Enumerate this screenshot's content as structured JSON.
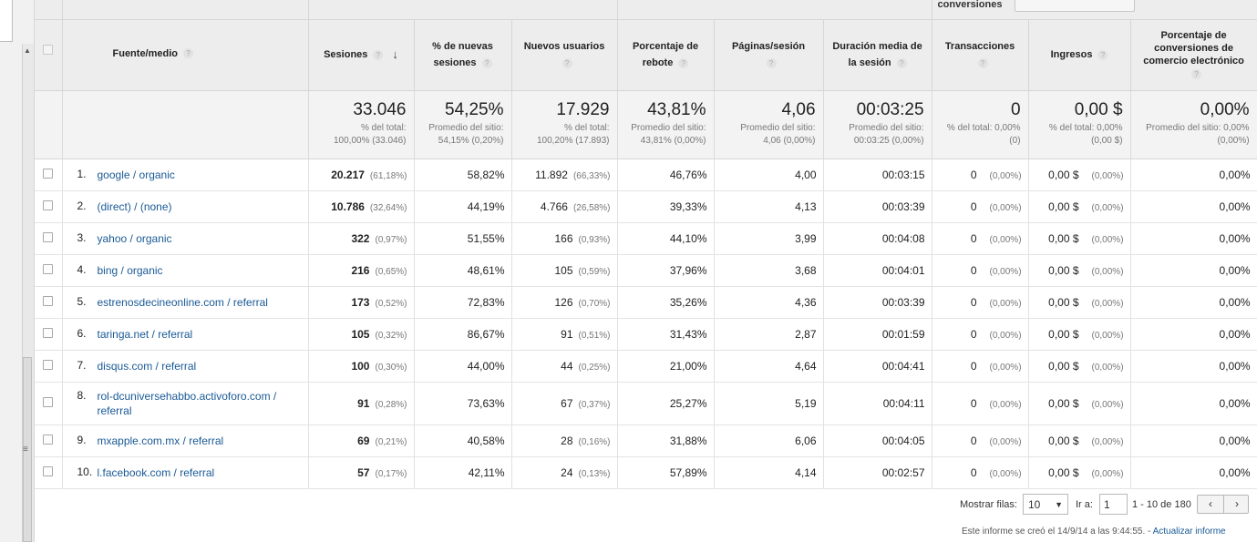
{
  "header": {
    "group_right": "conversiones",
    "fuente_label": "Fuente/medio",
    "columns": [
      {
        "label": "Sesiones"
      },
      {
        "label": "% de nuevas sesiones"
      },
      {
        "label": "Nuevos usuarios"
      },
      {
        "label": "Porcentaje de rebote"
      },
      {
        "label": "Páginas/sesión"
      },
      {
        "label": "Duración media de la sesión"
      },
      {
        "label": "Transacciones"
      },
      {
        "label": "Ingresos"
      },
      {
        "label": "Porcentaje de conversiones de comercio electrónico"
      }
    ]
  },
  "totals": [
    {
      "value": "33.046",
      "sub1": "% del total:",
      "sub2": "100,00% (33.046)"
    },
    {
      "value": "54,25%",
      "sub1": "Promedio del sitio:",
      "sub2": "54,15% (0,20%)"
    },
    {
      "value": "17.929",
      "sub1": "% del total:",
      "sub2": "100,20% (17.893)"
    },
    {
      "value": "43,81%",
      "sub1": "Promedio del sitio:",
      "sub2": "43,81% (0,00%)"
    },
    {
      "value": "4,06",
      "sub1": "Promedio del sitio:",
      "sub2": "4,06 (0,00%)"
    },
    {
      "value": "00:03:25",
      "sub1": "Promedio del sitio:",
      "sub2": "00:03:25 (0,00%)"
    },
    {
      "value": "0",
      "sub1": "% del total: 0,00%",
      "sub2": "(0)"
    },
    {
      "value": "0,00 $",
      "sub1": "% del total: 0,00%",
      "sub2": "(0,00 $)"
    },
    {
      "value": "0,00%",
      "sub1": "Promedio del sitio: 0,00%",
      "sub2": "(0,00%)"
    }
  ],
  "rows": [
    {
      "idx": "1.",
      "source": "google / organic",
      "sessions": "20.217",
      "sessions_pct": "(61,18%)",
      "new_sessions": "58,82%",
      "new_users": "11.892",
      "new_users_pct": "(66,33%)",
      "bounce": "46,76%",
      "pages": "4,00",
      "duration": "00:03:15",
      "transactions": "0",
      "transactions_pct": "(0,00%)",
      "revenue": "0,00 $",
      "revenue_pct": "(0,00%)",
      "conversion": "0,00%"
    },
    {
      "idx": "2.",
      "source": "(direct) / (none)",
      "sessions": "10.786",
      "sessions_pct": "(32,64%)",
      "new_sessions": "44,19%",
      "new_users": "4.766",
      "new_users_pct": "(26,58%)",
      "bounce": "39,33%",
      "pages": "4,13",
      "duration": "00:03:39",
      "transactions": "0",
      "transactions_pct": "(0,00%)",
      "revenue": "0,00 $",
      "revenue_pct": "(0,00%)",
      "conversion": "0,00%"
    },
    {
      "idx": "3.",
      "source": "yahoo / organic",
      "sessions": "322",
      "sessions_pct": "(0,97%)",
      "new_sessions": "51,55%",
      "new_users": "166",
      "new_users_pct": "(0,93%)",
      "bounce": "44,10%",
      "pages": "3,99",
      "duration": "00:04:08",
      "transactions": "0",
      "transactions_pct": "(0,00%)",
      "revenue": "0,00 $",
      "revenue_pct": "(0,00%)",
      "conversion": "0,00%"
    },
    {
      "idx": "4.",
      "source": "bing / organic",
      "sessions": "216",
      "sessions_pct": "(0,65%)",
      "new_sessions": "48,61%",
      "new_users": "105",
      "new_users_pct": "(0,59%)",
      "bounce": "37,96%",
      "pages": "3,68",
      "duration": "00:04:01",
      "transactions": "0",
      "transactions_pct": "(0,00%)",
      "revenue": "0,00 $",
      "revenue_pct": "(0,00%)",
      "conversion": "0,00%"
    },
    {
      "idx": "5.",
      "source": "estrenosdecineonline.com / referral",
      "sessions": "173",
      "sessions_pct": "(0,52%)",
      "new_sessions": "72,83%",
      "new_users": "126",
      "new_users_pct": "(0,70%)",
      "bounce": "35,26%",
      "pages": "4,36",
      "duration": "00:03:39",
      "transactions": "0",
      "transactions_pct": "(0,00%)",
      "revenue": "0,00 $",
      "revenue_pct": "(0,00%)",
      "conversion": "0,00%"
    },
    {
      "idx": "6.",
      "source": "taringa.net / referral",
      "sessions": "105",
      "sessions_pct": "(0,32%)",
      "new_sessions": "86,67%",
      "new_users": "91",
      "new_users_pct": "(0,51%)",
      "bounce": "31,43%",
      "pages": "2,87",
      "duration": "00:01:59",
      "transactions": "0",
      "transactions_pct": "(0,00%)",
      "revenue": "0,00 $",
      "revenue_pct": "(0,00%)",
      "conversion": "0,00%"
    },
    {
      "idx": "7.",
      "source": "disqus.com / referral",
      "sessions": "100",
      "sessions_pct": "(0,30%)",
      "new_sessions": "44,00%",
      "new_users": "44",
      "new_users_pct": "(0,25%)",
      "bounce": "21,00%",
      "pages": "4,64",
      "duration": "00:04:41",
      "transactions": "0",
      "transactions_pct": "(0,00%)",
      "revenue": "0,00 $",
      "revenue_pct": "(0,00%)",
      "conversion": "0,00%"
    },
    {
      "idx": "8.",
      "source": "rol-dcuniversehabbo.activoforo.com / referral",
      "sessions": "91",
      "sessions_pct": "(0,28%)",
      "new_sessions": "73,63%",
      "new_users": "67",
      "new_users_pct": "(0,37%)",
      "bounce": "25,27%",
      "pages": "5,19",
      "duration": "00:04:11",
      "transactions": "0",
      "transactions_pct": "(0,00%)",
      "revenue": "0,00 $",
      "revenue_pct": "(0,00%)",
      "conversion": "0,00%"
    },
    {
      "idx": "9.",
      "source": "mxapple.com.mx / referral",
      "sessions": "69",
      "sessions_pct": "(0,21%)",
      "new_sessions": "40,58%",
      "new_users": "28",
      "new_users_pct": "(0,16%)",
      "bounce": "31,88%",
      "pages": "6,06",
      "duration": "00:04:05",
      "transactions": "0",
      "transactions_pct": "(0,00%)",
      "revenue": "0,00 $",
      "revenue_pct": "(0,00%)",
      "conversion": "0,00%"
    },
    {
      "idx": "10.",
      "source": "l.facebook.com / referral",
      "sessions": "57",
      "sessions_pct": "(0,17%)",
      "new_sessions": "42,11%",
      "new_users": "24",
      "new_users_pct": "(0,13%)",
      "bounce": "57,89%",
      "pages": "4,14",
      "duration": "00:02:57",
      "transactions": "0",
      "transactions_pct": "(0,00%)",
      "revenue": "0,00 $",
      "revenue_pct": "(0,00%)",
      "conversion": "0,00%"
    }
  ],
  "footer": {
    "rows_label": "Mostrar filas:",
    "rows_value": "10",
    "goto_label": "Ir a:",
    "goto_value": "1",
    "range": "1 - 10 de 180",
    "prev": "‹",
    "next": "›",
    "created_text": "Este informe se creó el 14/9/14 a las 9:44:55. -",
    "update_link": "Actualizar informe"
  }
}
